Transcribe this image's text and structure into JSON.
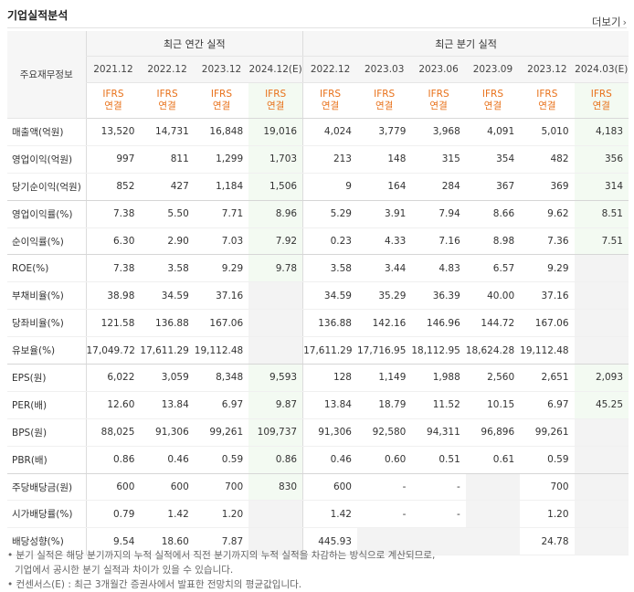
{
  "header": {
    "title": "기업실적분석",
    "more_label": "더보기"
  },
  "table": {
    "corner_label": "주요재무정보",
    "group_annual": "최근 연간 실적",
    "group_quarterly": "최근 분기 실적",
    "periods": [
      "2021.12",
      "2022.12",
      "2023.12",
      "2024.12(E)",
      "2022.12",
      "2023.03",
      "2023.06",
      "2023.09",
      "2023.12",
      "2024.03(E)"
    ],
    "ifrs_line1": "IFRS",
    "ifrs_line2": "연결",
    "rows": [
      {
        "label": "매출액(억원)",
        "values": [
          "13,520",
          "14,731",
          "16,848",
          "19,016",
          "4,024",
          "3,779",
          "3,968",
          "4,091",
          "5,010",
          "4,183"
        ]
      },
      {
        "label": "영업이익(억원)",
        "values": [
          "997",
          "811",
          "1,299",
          "1,703",
          "213",
          "148",
          "315",
          "354",
          "482",
          "356"
        ]
      },
      {
        "label": "당기순이익(억원)",
        "values": [
          "852",
          "427",
          "1,184",
          "1,506",
          "9",
          "164",
          "284",
          "367",
          "369",
          "314"
        ]
      },
      {
        "label": "영업이익률(%)",
        "values": [
          "7.38",
          "5.50",
          "7.71",
          "8.96",
          "5.29",
          "3.91",
          "7.94",
          "8.66",
          "9.62",
          "8.51"
        ]
      },
      {
        "label": "순이익률(%)",
        "values": [
          "6.30",
          "2.90",
          "7.03",
          "7.92",
          "0.23",
          "4.33",
          "7.16",
          "8.98",
          "7.36",
          "7.51"
        ]
      },
      {
        "label": "ROE(%)",
        "values": [
          "7.38",
          "3.58",
          "9.29",
          "9.78",
          "3.58",
          "3.44",
          "4.83",
          "6.57",
          "9.29",
          ""
        ]
      },
      {
        "label": "부채비율(%)",
        "values": [
          "38.98",
          "34.59",
          "37.16",
          "",
          "34.59",
          "35.29",
          "36.39",
          "40.00",
          "37.16",
          ""
        ]
      },
      {
        "label": "당좌비율(%)",
        "values": [
          "121.58",
          "136.88",
          "167.06",
          "",
          "136.88",
          "142.16",
          "146.96",
          "144.72",
          "167.06",
          ""
        ]
      },
      {
        "label": "유보율(%)",
        "values": [
          "17,049.72",
          "17,611.29",
          "19,112.48",
          "",
          "17,611.29",
          "17,716.95",
          "18,112.95",
          "18,624.28",
          "19,112.48",
          ""
        ]
      },
      {
        "label": "EPS(원)",
        "values": [
          "6,022",
          "3,059",
          "8,348",
          "9,593",
          "128",
          "1,149",
          "1,988",
          "2,560",
          "2,651",
          "2,093"
        ]
      },
      {
        "label": "PER(배)",
        "values": [
          "12.60",
          "13.84",
          "6.97",
          "9.87",
          "13.84",
          "18.79",
          "11.52",
          "10.15",
          "6.97",
          "45.25"
        ]
      },
      {
        "label": "BPS(원)",
        "values": [
          "88,025",
          "91,306",
          "99,261",
          "109,737",
          "91,306",
          "92,580",
          "94,311",
          "96,896",
          "99,261",
          ""
        ]
      },
      {
        "label": "PBR(배)",
        "values": [
          "0.86",
          "0.46",
          "0.59",
          "0.86",
          "0.46",
          "0.60",
          "0.51",
          "0.61",
          "0.59",
          ""
        ]
      },
      {
        "label": "주당배당금(원)",
        "values": [
          "600",
          "600",
          "700",
          "830",
          "600",
          "-",
          "-",
          "",
          "700",
          ""
        ]
      },
      {
        "label": "시가배당률(%)",
        "values": [
          "0.79",
          "1.42",
          "1.20",
          "",
          "1.42",
          "-",
          "-",
          "",
          "1.20",
          ""
        ]
      },
      {
        "label": "배당성향(%)",
        "values": [
          "9.54",
          "18.60",
          "7.87",
          "",
          "445.93",
          "",
          "",
          "",
          "24.78",
          ""
        ]
      }
    ]
  },
  "notes": {
    "line1": "분기 실적은 해당 분기까지의 누적 실적에서 직전 분기까지의 누적 실적을 차감하는 방식으로 계산되므로,",
    "line2": "기업에서 공시한 분기 실적과 차이가 있을 수 있습니다.",
    "line3": "컨센서스(E) : 최근 3개월간 증권사에서 발표한 전망치의 평균값입니다."
  },
  "colors": {
    "ifrs_accent": "#e8711a",
    "estimate_bg": "#f3faf2",
    "header_bg": "#f6f6f6"
  }
}
